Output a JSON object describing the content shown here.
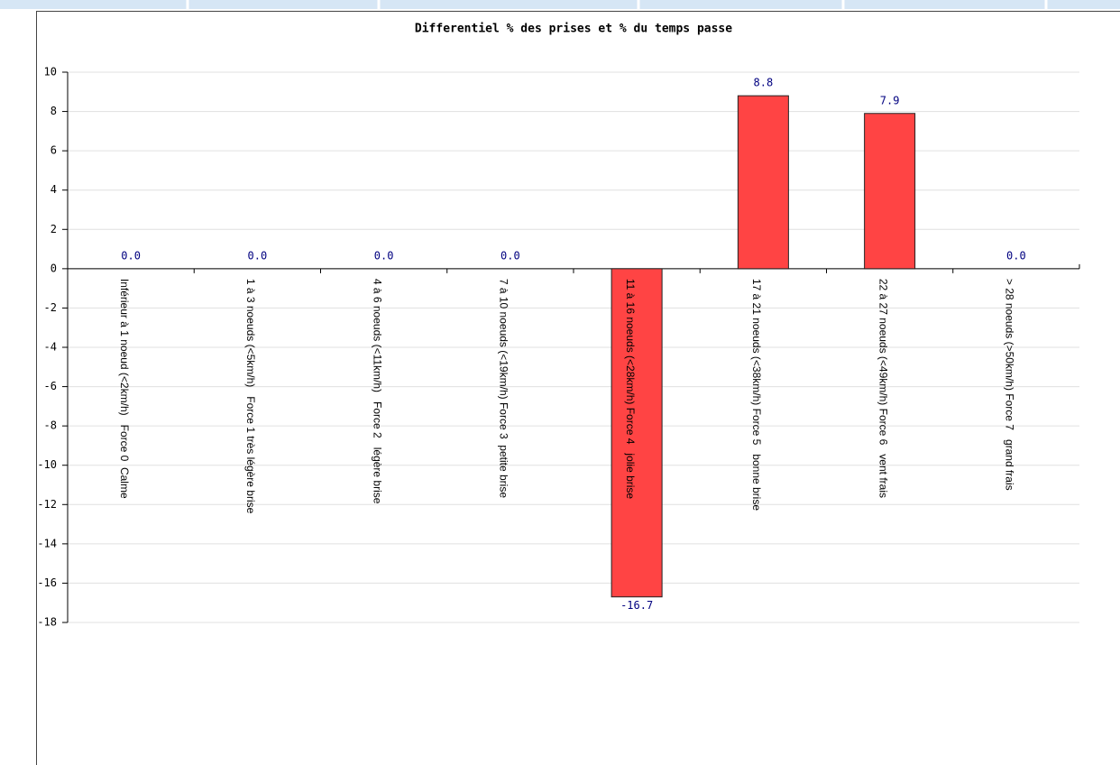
{
  "chart_data": {
    "type": "bar",
    "title": "Differentiel % des prises et % du temps passe",
    "categories": [
      "Inférieur à 1 noeud (<2km/h)   Force 0  Calme",
      "1 à 3 noeuds (<5km/h)   Force 1 très légère brise",
      "4 à 6 noeuds (<11km/h)   Force 2   légère brise",
      "7 à 10 noeuds (<19km/h) Force 3  petite brise",
      "11 à 16 noeuds (<28km/h) Force 4   jolie brise",
      "17 à 21 noeuds (<38km/h) Force 5   bonne brise",
      "22 à 27 noeuds (<49km/h) Force 6   vent frais",
      "> 28 noeuds (>50km/h) Force 7   grand frais"
    ],
    "values": [
      0,
      0,
      0,
      0,
      -16.7,
      8.8,
      7.9,
      0
    ],
    "value_labels": [
      "0.0",
      "0.0",
      "0.0",
      "0.0",
      "-16.7",
      "8.8",
      "7.9",
      "0.0"
    ],
    "color": "#ff4444",
    "ylim": [
      -18,
      10
    ],
    "yticks": [
      -18,
      -16,
      -14,
      -12,
      -10,
      -8,
      -6,
      -4,
      -2,
      0,
      2,
      4,
      6,
      8,
      10
    ],
    "grid": true
  }
}
